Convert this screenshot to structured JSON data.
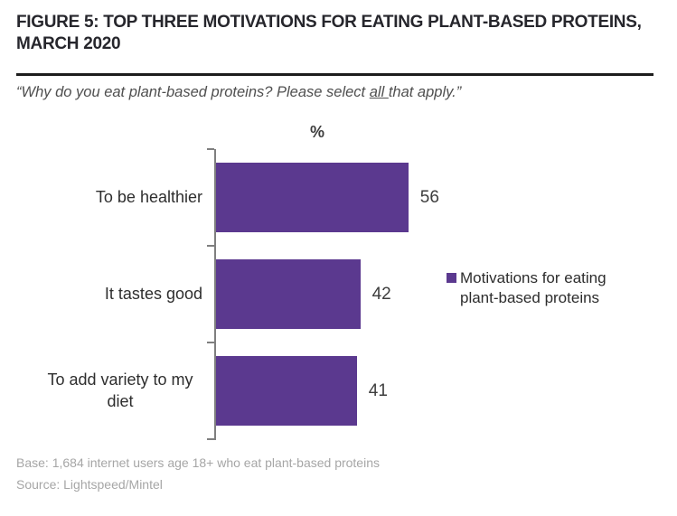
{
  "figure": {
    "title": "FIGURE 5: TOP THREE MOTIVATIONS FOR EATING PLANT-BASED PROTEINS,\nMARCH 2020",
    "question_prefix": "“Why do you eat plant-based proteins? Please select ",
    "question_underlined": "all ",
    "question_suffix": "that apply.”",
    "base_note": "Base: 1,684 internet users age 18+ who eat plant-based proteins",
    "source_note": "Source: Lightspeed/Mintel"
  },
  "chart_data": {
    "type": "bar",
    "orientation": "horizontal",
    "title": "%",
    "categories": [
      "To be healthier",
      "It tastes good",
      "To add variety to my diet"
    ],
    "values": [
      56,
      42,
      41
    ],
    "series": [
      {
        "name": "Motivations for eating plant-based proteins",
        "values": [
          56,
          42,
          41
        ]
      }
    ],
    "xlabel": "%",
    "ylabel": "",
    "xlim": [
      0,
      60
    ],
    "grid": false,
    "data_labels_shown": true,
    "legend_position": "right",
    "legend_label": "Motivations for eating plant-based proteins",
    "bar_color": "#5b398f",
    "axis_color": "#7f7f7f"
  }
}
